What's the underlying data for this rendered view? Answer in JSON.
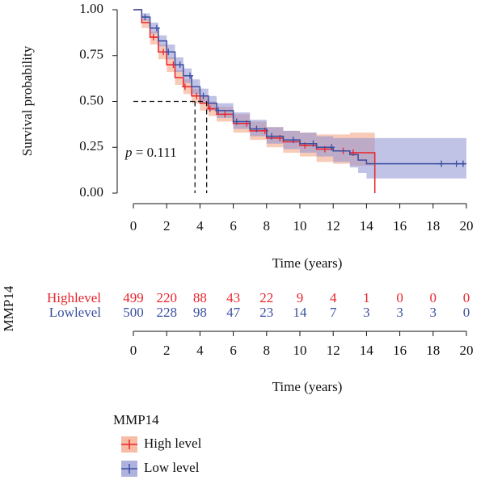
{
  "chart_data": {
    "type": "survival",
    "ylabel": "Survival probability",
    "xlabel": "Time (years)",
    "annotation": {
      "label": "p",
      "text": "= 0.111"
    },
    "xlim": [
      0,
      20
    ],
    "ylim": [
      0,
      1
    ],
    "xticks": [
      0,
      2,
      4,
      6,
      8,
      10,
      12,
      14,
      16,
      18,
      20
    ],
    "yticks": [
      {
        "value": 0,
        "label": "0.00"
      },
      {
        "value": 0.25,
        "label": "0.25"
      },
      {
        "value": 0.5,
        "label": "0.50"
      },
      {
        "value": 0.75,
        "label": "0.75"
      },
      {
        "value": 1,
        "label": "1.00"
      }
    ],
    "median_lines": {
      "y": 0.5,
      "x": [
        3.7,
        4.4
      ]
    },
    "series": [
      {
        "name": "High level",
        "color": "#e8242c",
        "band_color": "#f2a07e",
        "x": [
          0,
          0.5,
          1,
          1.5,
          2,
          2.5,
          3,
          3.5,
          4,
          4.5,
          5,
          6,
          7,
          8,
          9,
          10,
          11,
          12,
          13,
          14,
          14.5
        ],
        "values": [
          1,
          0.93,
          0.85,
          0.77,
          0.7,
          0.63,
          0.58,
          0.53,
          0.49,
          0.46,
          0.43,
          0.38,
          0.34,
          0.3,
          0.28,
          0.26,
          0.24,
          0.23,
          0.22,
          0.22,
          0
        ],
        "lower": [
          1,
          0.9,
          0.81,
          0.73,
          0.66,
          0.59,
          0.54,
          0.49,
          0.45,
          0.42,
          0.39,
          0.33,
          0.29,
          0.25,
          0.22,
          0.2,
          0.17,
          0.16,
          0.15,
          0.15,
          0
        ],
        "upper": [
          1,
          0.95,
          0.88,
          0.81,
          0.74,
          0.67,
          0.62,
          0.57,
          0.53,
          0.5,
          0.47,
          0.43,
          0.39,
          0.36,
          0.34,
          0.33,
          0.32,
          0.32,
          0.33,
          0.33,
          0.33
        ],
        "censored_x": [
          1.2,
          1.8,
          2.4,
          3.1,
          3.8,
          4.6,
          5.5,
          6.8,
          7.9,
          8.8,
          10.3,
          11.5,
          12.6,
          13.2
        ]
      },
      {
        "name": "Low level",
        "color": "#3a4fa0",
        "band_color": "#8d90d2",
        "x": [
          0,
          0.5,
          1,
          1.5,
          2,
          2.5,
          3,
          3.5,
          4,
          4.5,
          5,
          6,
          7,
          8,
          9,
          10,
          11,
          12,
          13,
          13.5,
          14,
          20
        ],
        "values": [
          1,
          0.96,
          0.9,
          0.83,
          0.77,
          0.7,
          0.64,
          0.58,
          0.53,
          0.49,
          0.45,
          0.39,
          0.35,
          0.31,
          0.29,
          0.27,
          0.25,
          0.23,
          0.21,
          0.18,
          0.16,
          0.16
        ],
        "lower": [
          1,
          0.94,
          0.87,
          0.8,
          0.73,
          0.66,
          0.6,
          0.54,
          0.49,
          0.45,
          0.41,
          0.35,
          0.31,
          0.27,
          0.24,
          0.22,
          0.2,
          0.17,
          0.14,
          0.11,
          0.08,
          0.08
        ],
        "upper": [
          1,
          0.98,
          0.93,
          0.86,
          0.81,
          0.74,
          0.68,
          0.62,
          0.57,
          0.53,
          0.49,
          0.44,
          0.4,
          0.36,
          0.34,
          0.33,
          0.31,
          0.3,
          0.3,
          0.3,
          0.3,
          0.3
        ],
        "censored_x": [
          0.7,
          1.4,
          2.1,
          2.8,
          3.4,
          4.2,
          5.1,
          6.2,
          7.4,
          8.3,
          9.6,
          10.8,
          11.9,
          18.5,
          19.4,
          19.8
        ]
      }
    ],
    "risk_table": {
      "title": "MMP14",
      "xlabel": "Time (years)",
      "xticks": [
        0,
        2,
        4,
        6,
        8,
        10,
        12,
        14,
        16,
        18,
        20
      ],
      "rows": [
        {
          "name": "Highlevel",
          "color": "#e8242c",
          "values": [
            499,
            220,
            88,
            43,
            22,
            9,
            4,
            1,
            0,
            0,
            0
          ]
        },
        {
          "name": "Lowlevel",
          "color": "#3a4fa0",
          "values": [
            500,
            228,
            98,
            47,
            23,
            14,
            7,
            3,
            3,
            3,
            0
          ]
        }
      ]
    },
    "legend": {
      "title": "MMP14"
    }
  }
}
